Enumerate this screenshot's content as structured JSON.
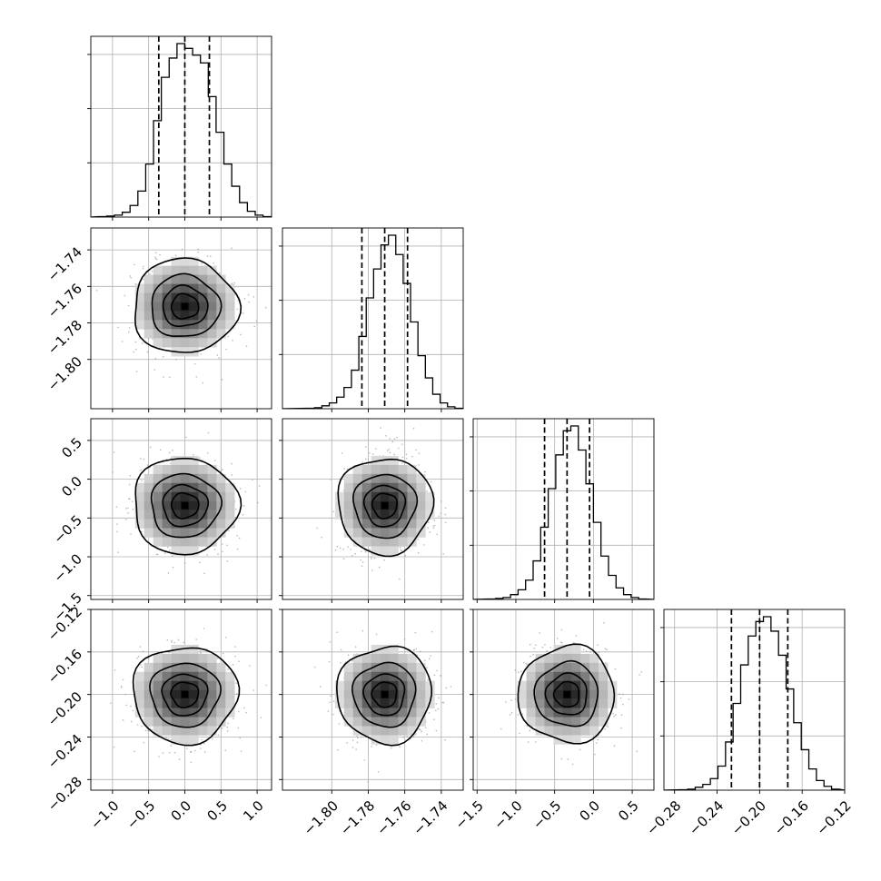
{
  "chart_data": {
    "type": "corner",
    "grid": true,
    "n_params": 4,
    "params": [
      {
        "index": 0,
        "range": [
          -1.3,
          1.2
        ],
        "ticks": [
          -1.0,
          -0.5,
          0.0,
          0.5,
          1.0
        ],
        "tick_labels": [
          "−1.0",
          "−0.5",
          "0.0",
          "0.5",
          "1.0"
        ],
        "quantiles": [
          -0.36,
          0.0,
          0.34
        ],
        "mean": 0.0,
        "sd": 0.35,
        "hist_bins": [
          0.5,
          1,
          2,
          5,
          12,
          27,
          55,
          100,
          145,
          165,
          180,
          175,
          168,
          160,
          125,
          88,
          55,
          32,
          15,
          6,
          2,
          0.5
        ],
        "scatter_x": [
          -0.7,
          -0.5,
          -0.55,
          0.6,
          0.5,
          0.7,
          -0.3,
          0.3,
          0.9,
          -0.9,
          0.2,
          -0.1,
          0.4,
          -0.6,
          0.65,
          -0.2,
          0.1,
          -0.8,
          0.75,
          0.55,
          -0.45,
          0.35,
          0.8,
          -0.85
        ]
      },
      {
        "index": 1,
        "range": [
          -1.827,
          -1.728
        ],
        "ticks": [
          -1.8,
          -1.78,
          -1.76,
          -1.74
        ],
        "tick_labels": [
          "−1.80",
          "−1.78",
          "−1.76",
          "−1.74"
        ],
        "quantiles": [
          -1.7835,
          -1.771,
          -1.7585
        ],
        "mean": -1.771,
        "sd": 0.0125,
        "hist_bins": [
          0.5,
          1,
          3,
          6,
          12,
          22,
          40,
          75,
          115,
          145,
          170,
          180,
          160,
          130,
          90,
          55,
          32,
          15,
          6,
          2,
          0.5
        ]
      },
      {
        "index": 2,
        "range": [
          -1.55,
          0.78
        ],
        "ticks": [
          -1.5,
          -1.0,
          -0.5,
          0.0,
          0.5
        ],
        "tick_labels": [
          "−1.5",
          "−1.0",
          "−0.5",
          "0.0",
          "0.5"
        ],
        "quantiles": [
          -0.63,
          -0.34,
          -0.05
        ],
        "mean": -0.34,
        "sd": 0.3,
        "hist_bins": [
          0.5,
          1,
          2,
          5,
          10,
          20,
          40,
          75,
          115,
          150,
          175,
          180,
          155,
          120,
          80,
          45,
          25,
          12,
          5,
          2,
          0.5
        ]
      },
      {
        "index": 3,
        "range": [
          -0.29,
          -0.12
        ],
        "ticks": [
          -0.28,
          -0.24,
          -0.2,
          -0.16,
          -0.12
        ],
        "tick_labels": [
          "−0.28",
          "−0.24",
          "−0.20",
          "−0.16",
          "−0.12"
        ],
        "quantiles": [
          -0.2265,
          -0.2,
          -0.1735
        ],
        "mean": -0.2,
        "sd": 0.022,
        "hist_bins": [
          0.5,
          1,
          3,
          6,
          12,
          25,
          50,
          90,
          130,
          160,
          175,
          180,
          165,
          140,
          105,
          70,
          42,
          22,
          10,
          4,
          1
        ]
      }
    ],
    "contour_levels_sigma": [
      0.5,
      1.0,
      1.5,
      2.0
    ],
    "density_peak_note": ""
  },
  "colors": {
    "line": "#000000",
    "grid": "#b0b0b0",
    "density_dark": "#2a2a2a",
    "density_light": "#f2f2f2",
    "points": "#9a9a9a"
  }
}
